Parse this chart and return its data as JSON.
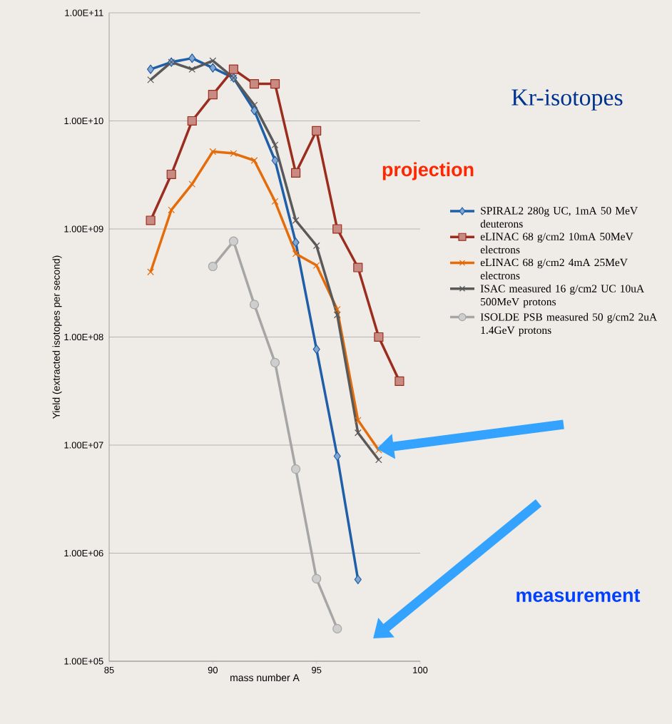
{
  "chart_data": {
    "type": "line",
    "title": "Kr-isotopes",
    "xlabel": "mass number A",
    "ylabel": "Yield (extracted isotopes per second)",
    "annotations": [
      "projection",
      "measurement"
    ],
    "log": "y",
    "grid": "y",
    "legend": "right",
    "xlim": [
      85,
      100
    ],
    "xticks": [
      85,
      90,
      95,
      100
    ],
    "ylim": [
      100000,
      100000000000
    ],
    "yticks": [
      {
        "value": 100000,
        "label": "1.00E+05"
      },
      {
        "value": 1000000,
        "label": "1.00E+06"
      },
      {
        "value": 10000000,
        "label": "1.00E+07"
      },
      {
        "value": 100000000,
        "label": "1.00E+08"
      },
      {
        "value": 1000000000,
        "label": "1.00E+09"
      },
      {
        "value": 10000000000,
        "label": "1.00E+10"
      },
      {
        "value": 100000000000,
        "label": "1.00E+11"
      }
    ],
    "series": [
      {
        "name": "SPIRAL2 280g UC, 1mA 50 MeV deuterons",
        "color": "#1f5fa8",
        "marker": "diamond",
        "x": [
          87,
          88,
          89,
          90,
          91,
          92,
          93,
          94,
          95,
          96,
          97
        ],
        "values": [
          30000000000.0,
          35000000000.0,
          38000000000.0,
          31000000000.0,
          25000000000.0,
          12500000000.0,
          4300000000.0,
          750000000.0,
          77000000.0,
          7900000.0,
          570000.0
        ]
      },
      {
        "name": "eLINAC 68 g/cm2 10mA 50MeV electrons",
        "color": "#9b2d1f",
        "marker": "square",
        "x": [
          87,
          88,
          89,
          90,
          91,
          92,
          93,
          94,
          95,
          96,
          97,
          98,
          99
        ],
        "values": [
          1200000000.0,
          3200000000.0,
          10000000000.0,
          17500000000.0,
          30000000000.0,
          22000000000.0,
          22000000000.0,
          3300000000.0,
          8100000000.0,
          1000000000.0,
          440000000.0,
          100000000.0,
          39000000.0
        ]
      },
      {
        "name": "eLINAC 68 g/cm2 4mA 25MeV electrons",
        "color": "#e46c0a",
        "marker": "cross",
        "x": [
          87,
          88,
          89,
          90,
          91,
          92,
          93,
          94,
          95,
          96,
          97,
          98
        ],
        "values": [
          400000000.0,
          1500000000.0,
          2600000000.0,
          5200000000.0,
          5000000000.0,
          4300000000.0,
          1800000000.0,
          590000000.0,
          460000000.0,
          180000000.0,
          17000000.0,
          9000000.0
        ]
      },
      {
        "name": "ISAC measured 16 g/cm2 UC 10uA 500MeV protons",
        "color": "#595959",
        "marker": "cross",
        "x": [
          87,
          88,
          89,
          90,
          91,
          92,
          93,
          94,
          95,
          96,
          97,
          98
        ],
        "values": [
          24000000000.0,
          35000000000.0,
          30000000000.0,
          36000000000.0,
          25000000000.0,
          14000000000.0,
          6000000000.0,
          1200000000.0,
          700000000.0,
          160000000.0,
          13000000.0,
          7300000.0
        ]
      },
      {
        "name": "ISOLDE PSB measured 50 g/cm2 2uA 1.4GeV protons",
        "color": "#a6a6a6",
        "marker": "circle",
        "x": [
          90,
          91,
          92,
          93,
          94,
          95,
          96
        ],
        "values": [
          450000000.0,
          770000000.0,
          200000000.0,
          58000000.0,
          6000000.0,
          580000.0,
          200000.0
        ]
      }
    ]
  }
}
